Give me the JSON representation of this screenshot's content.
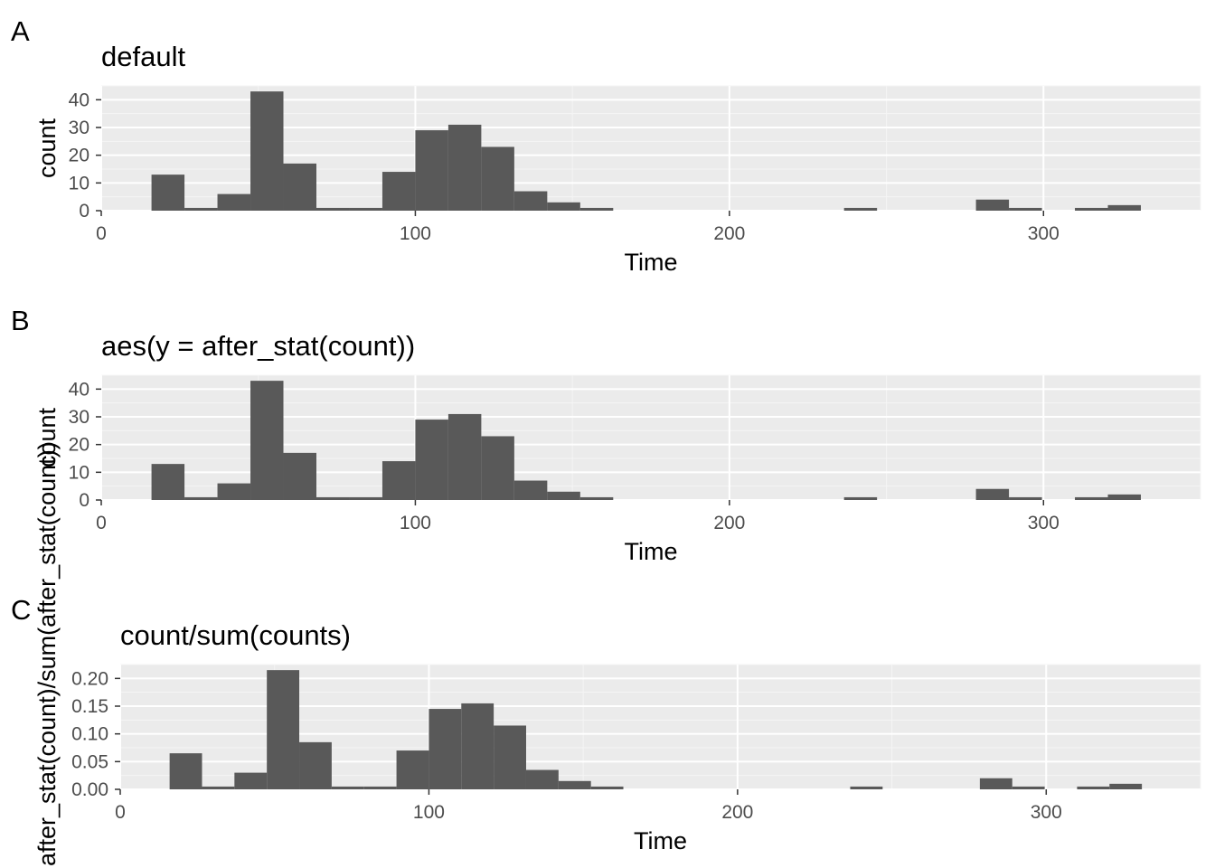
{
  "colors": {
    "panel_background": "#ebebeb",
    "grid_major": "#ffffff",
    "grid_minor": "#f5f5f5",
    "bar_fill": "#595959",
    "tick_text": "#4d4d4d",
    "tick_mark": "#333333",
    "text": "#000000"
  },
  "chart_data": [
    {
      "type": "bar",
      "tag": "A",
      "title": "default",
      "xlabel": "Time",
      "ylabel": "count",
      "xlim": [
        0,
        350
      ],
      "ylim": [
        0,
        45
      ],
      "x_breaks": [
        0,
        100,
        200,
        300
      ],
      "x_tick_labels": [
        "0",
        "100",
        "200",
        "300"
      ],
      "y_breaks": [
        0,
        10,
        20,
        30,
        40
      ],
      "y_tick_labels": [
        "0",
        "10",
        "20",
        "30",
        "40"
      ],
      "bin_width": 10.5,
      "bin_starts": [
        16,
        26.5,
        37,
        47.5,
        58,
        68.5,
        79,
        89.5,
        100,
        110.5,
        121,
        131.5,
        142,
        152.5,
        236.5,
        278.5,
        289,
        310,
        320.5
      ],
      "values": [
        13,
        1,
        6,
        43,
        17,
        1,
        1,
        14,
        29,
        31,
        23,
        7,
        3,
        1,
        1,
        4,
        1,
        1,
        2
      ]
    },
    {
      "type": "bar",
      "tag": "B",
      "title": "aes(y = after_stat(count))",
      "xlabel": "Time",
      "ylabel": "count",
      "xlim": [
        0,
        350
      ],
      "ylim": [
        0,
        45
      ],
      "x_breaks": [
        0,
        100,
        200,
        300
      ],
      "x_tick_labels": [
        "0",
        "100",
        "200",
        "300"
      ],
      "y_breaks": [
        0,
        10,
        20,
        30,
        40
      ],
      "y_tick_labels": [
        "0",
        "10",
        "20",
        "30",
        "40"
      ],
      "bin_width": 10.5,
      "bin_starts": [
        16,
        26.5,
        37,
        47.5,
        58,
        68.5,
        79,
        89.5,
        100,
        110.5,
        121,
        131.5,
        142,
        152.5,
        236.5,
        278.5,
        289,
        310,
        320.5
      ],
      "values": [
        13,
        1,
        6,
        43,
        17,
        1,
        1,
        14,
        29,
        31,
        23,
        7,
        3,
        1,
        1,
        4,
        1,
        1,
        2
      ]
    },
    {
      "type": "bar",
      "tag": "C",
      "title": "count/sum(counts)",
      "xlabel": "Time",
      "ylabel": "after_stat(count)/sum(after_stat(count))",
      "xlim": [
        0,
        350
      ],
      "ylim": [
        0,
        0.225
      ],
      "x_breaks": [
        0,
        100,
        200,
        300
      ],
      "x_tick_labels": [
        "0",
        "100",
        "200",
        "300"
      ],
      "y_breaks": [
        0,
        0.05,
        0.1,
        0.15,
        0.2
      ],
      "y_tick_labels": [
        "0.00",
        "0.05",
        "0.10",
        "0.15",
        "0.20"
      ],
      "bin_width": 10.5,
      "bin_starts": [
        16,
        26.5,
        37,
        47.5,
        58,
        68.5,
        79,
        89.5,
        100,
        110.5,
        121,
        131.5,
        142,
        152.5,
        236.5,
        278.5,
        289,
        310,
        320.5
      ],
      "values": [
        0.065,
        0.005,
        0.03,
        0.215,
        0.085,
        0.005,
        0.005,
        0.07,
        0.145,
        0.155,
        0.115,
        0.035,
        0.015,
        0.005,
        0.005,
        0.02,
        0.005,
        0.005,
        0.01
      ]
    }
  ]
}
